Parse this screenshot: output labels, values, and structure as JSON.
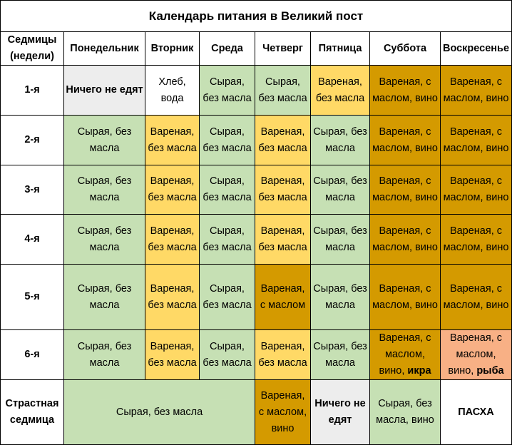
{
  "title": "Календарь питания в Великий пост",
  "headers": [
    "Седмицы (недели)",
    "Понедельник",
    "Вторник",
    "Среда",
    "Четверг",
    "Пятница",
    "Суббота",
    "Воскресенье"
  ],
  "weeks": [
    "1-я",
    "2-я",
    "3-я",
    "4-я",
    "5-я",
    "6-я",
    "Страстная седмица"
  ],
  "cells": {
    "nothing": "Ничего не едят",
    "bread_water": "Хлеб, вода",
    "raw_no_oil": "Сырая, без масла",
    "boiled_no_oil": "Вареная, без масла",
    "boiled_oil_wine": "Вареная, с маслом, вино",
    "boiled_oil": "Вареная, с маслом",
    "boiled_oil_wine_prefix": "Вареная, с маслом, вино,",
    "caviar": "икра",
    "fish": "рыба",
    "raw_no_oil_wine": "Сырая, без масла, вино",
    "pascha": "ПАСХА"
  },
  "colors": {
    "gray": "#ededed",
    "green": "#c6e0b4",
    "yellow": "#ffd966",
    "brown": "#d49a00",
    "salmon": "#f8b085",
    "pascha_text": "#ff0000"
  }
}
